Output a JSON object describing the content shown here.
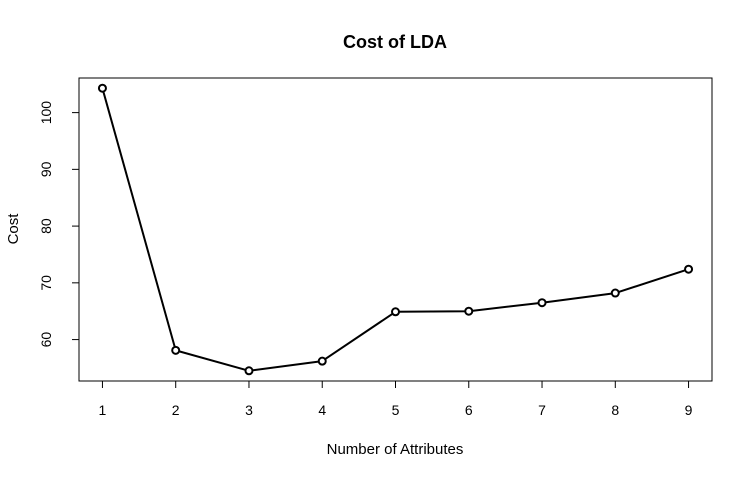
{
  "chart_data": {
    "type": "line",
    "title": "Cost of LDA",
    "xlabel": "Number of Attributes",
    "ylabel": "Cost",
    "x": [
      1,
      2,
      3,
      4,
      5,
      6,
      7,
      8,
      9
    ],
    "y": [
      104.3,
      58.1,
      54.5,
      56.2,
      64.9,
      65.0,
      66.5,
      68.2,
      72.4
    ],
    "xticks": [
      1,
      2,
      3,
      4,
      5,
      6,
      7,
      8,
      9
    ],
    "xtick_labels": [
      "1",
      "2",
      "3",
      "4",
      "5",
      "6",
      "7",
      "8",
      "9"
    ],
    "yticks": [
      60,
      70,
      80,
      90,
      100
    ],
    "ytick_labels": [
      "60",
      "70",
      "80",
      "90",
      "100"
    ],
    "xlim": [
      0.68,
      9.32
    ],
    "ylim": [
      52.7,
      106.1
    ],
    "grid": false,
    "legend": "none",
    "markers": "open-circle",
    "line_color": "#000000"
  }
}
